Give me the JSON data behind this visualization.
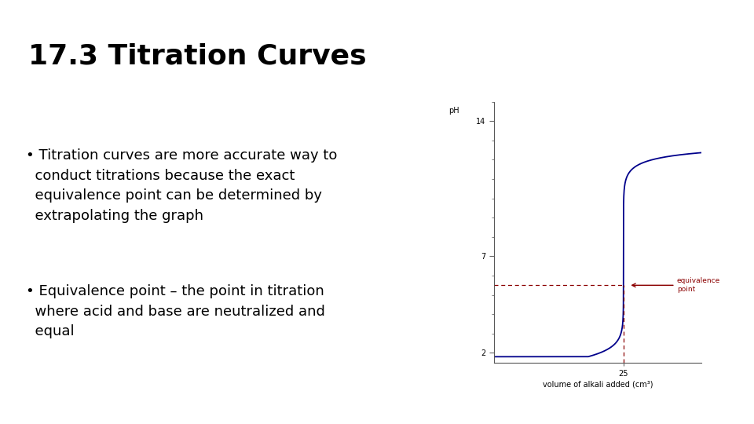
{
  "title": "17.3 Titration Curves",
  "bullet1": "Titration curves are more accurate way to\n  conduct titrations because the exact\n  equivalence point can be determined by\n  extrapolating the graph",
  "bullet2": "Equivalence point – the point in titration\n  where acid and base are neutralized and\n  equal",
  "bg_color": "#ffffff",
  "text_color": "#000000",
  "curve_color": "#00008B",
  "dashed_color": "#8B0000",
  "eq_point_x": 25,
  "eq_point_ph": 5.5,
  "ylabel": "pH",
  "xlabel": "volume of alkali added (cm³)",
  "ytick_labels": [
    2,
    7,
    14
  ],
  "xtick_val": 25,
  "xlim": [
    0,
    40
  ],
  "ylim": [
    1.5,
    15
  ],
  "eq_label": "equivalence\npoint",
  "title_fontsize": 26,
  "bullet_fontsize": 13,
  "chart_label_fontsize": 7,
  "chart_axis_fontsize": 7,
  "curve_end_ph": 12.3,
  "veq": 25
}
